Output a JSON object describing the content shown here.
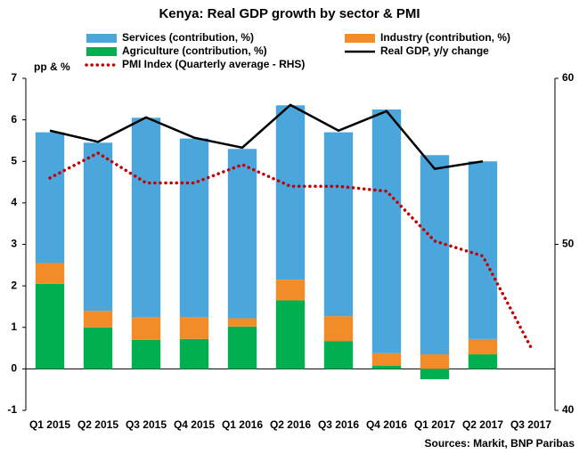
{
  "chart_data": {
    "type": "bar",
    "title": "Kenya: Real GDP growth by sector & PMI",
    "y_label": "pp & %",
    "source": "Sources: Markit, BNP Paribas",
    "categories": [
      "Q1 2015",
      "Q2 2015",
      "Q3 2015",
      "Q4 2015",
      "Q1 2016",
      "Q2 2016",
      "Q3 2016",
      "Q4 2016",
      "Q1 2017",
      "Q2 2017",
      "Q3 2017"
    ],
    "stacked": true,
    "series": [
      {
        "name": "Agriculture (contribution, %)",
        "type": "bar",
        "color": "#00b050",
        "values": [
          2.05,
          1.0,
          0.7,
          0.72,
          1.02,
          1.65,
          0.67,
          0.08,
          -0.25,
          0.35,
          null
        ]
      },
      {
        "name": "Industry (contribution, %)",
        "type": "bar",
        "color": "#f28c28",
        "values": [
          0.5,
          0.4,
          0.55,
          0.53,
          0.2,
          0.5,
          0.6,
          0.3,
          0.35,
          0.37,
          null
        ]
      },
      {
        "name": "Services (contribution, %)",
        "type": "bar",
        "color": "#4ba6dc",
        "values": [
          3.15,
          4.05,
          4.8,
          4.3,
          4.08,
          4.2,
          4.43,
          5.87,
          4.8,
          4.28,
          null
        ]
      },
      {
        "name": "Real GDP, y/y change",
        "type": "line",
        "color": "#000000",
        "values": [
          5.74,
          5.47,
          6.06,
          5.57,
          5.33,
          6.36,
          5.74,
          6.21,
          4.82,
          5.0,
          null
        ]
      },
      {
        "name": "PMI Index (Quarterly average - RHS)",
        "type": "line",
        "dotted": true,
        "axis": "y2",
        "color": "#c00000",
        "values": [
          54.0,
          55.5,
          53.7,
          53.7,
          54.8,
          53.5,
          53.5,
          53.2,
          50.2,
          49.3,
          43.8
        ]
      }
    ],
    "ylim": [
      -1,
      7
    ],
    "yticks": [
      -1,
      0,
      1,
      2,
      3,
      4,
      5,
      6,
      7
    ],
    "y2lim": [
      40,
      60
    ],
    "y2ticks": [
      40,
      50,
      60
    ],
    "grid": false
  }
}
